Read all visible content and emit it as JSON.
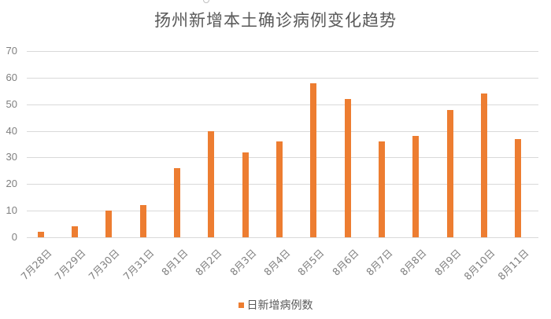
{
  "chart_data": {
    "type": "bar",
    "title": "扬州新增本土确诊病例变化趋势",
    "xlabel": "",
    "ylabel": "",
    "categories": [
      "7月28日",
      "7月29日",
      "7月30日",
      "7月31日",
      "8月1日",
      "8月2日",
      "8月3日",
      "8月4日",
      "8月5日",
      "8月6日",
      "8月7日",
      "8月8日",
      "8月9日",
      "8月10日",
      "8月11日"
    ],
    "series": [
      {
        "name": "日新增病例数",
        "color": "#ed7d31",
        "values": [
          2,
          4,
          10,
          12,
          26,
          40,
          32,
          36,
          58,
          52,
          36,
          38,
          48,
          54,
          37
        ]
      }
    ],
    "ylim": [
      0,
      70
    ],
    "yticks": [
      "0",
      "10",
      "20",
      "30",
      "40",
      "50",
      "60",
      "70"
    ],
    "grid": true,
    "legend_position": "bottom"
  }
}
